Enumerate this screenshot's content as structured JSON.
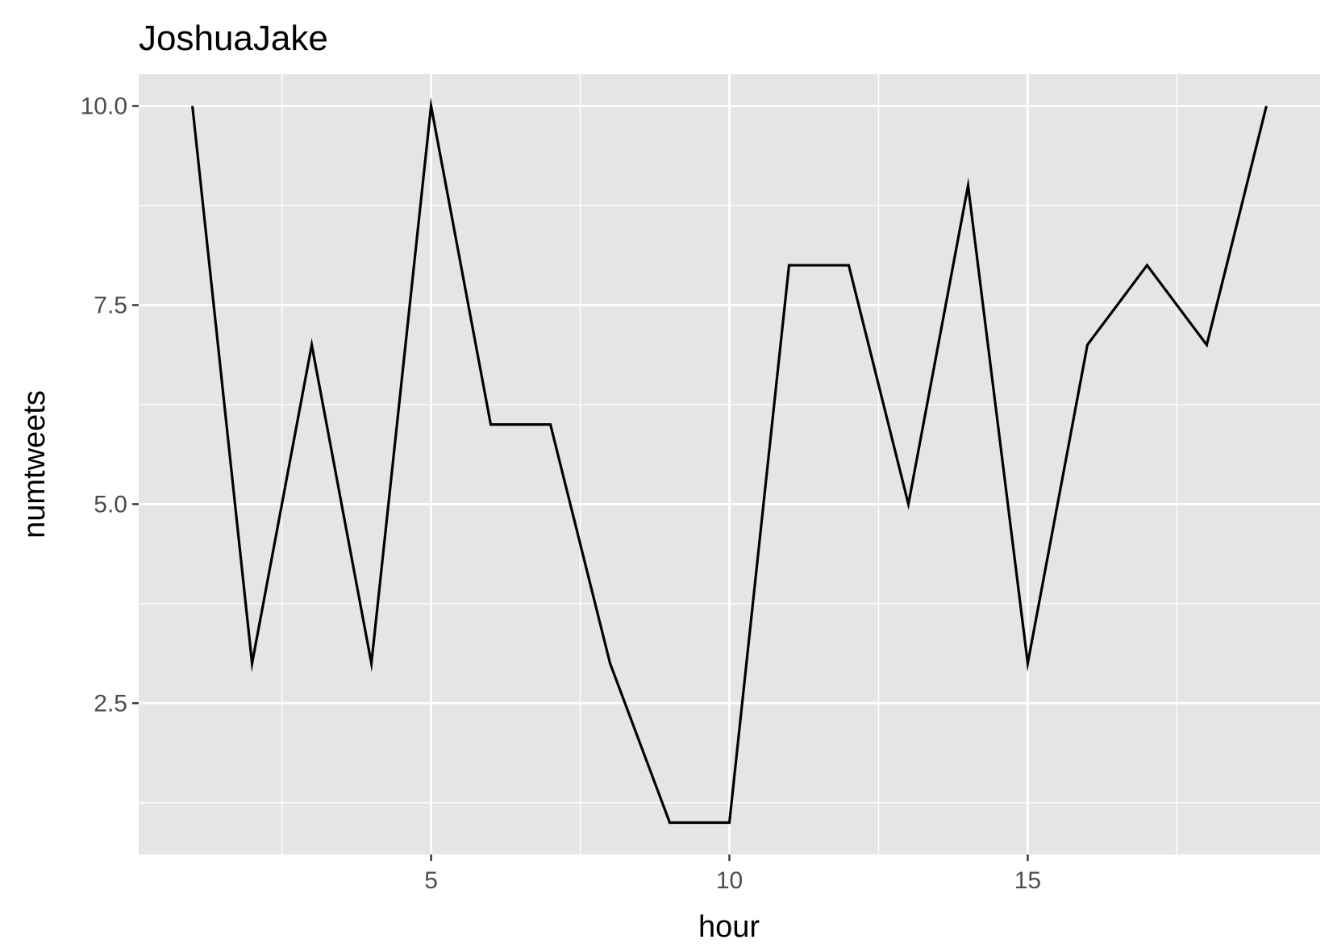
{
  "chart_data": {
    "type": "line",
    "title": "JoshuaJake",
    "xlabel": "hour",
    "ylabel": "numtweets",
    "x": [
      1,
      2,
      3,
      4,
      5,
      6,
      7,
      8,
      9,
      10,
      11,
      12,
      13,
      14,
      15,
      16,
      17,
      18,
      19
    ],
    "series": [
      {
        "values": [
          10,
          3,
          7,
          3,
          10,
          6,
          6,
          3,
          1,
          1,
          8,
          8,
          5,
          9,
          3,
          7,
          8,
          7,
          10
        ]
      }
    ],
    "xlim": [
      0.1,
      19.9
    ],
    "ylim": [
      0.6,
      10.4
    ],
    "x_major_ticks": [
      5,
      10,
      15
    ],
    "x_minor_ticks": [
      2.5,
      7.5,
      12.5,
      17.5
    ],
    "y_major_ticks": [
      2.5,
      5.0,
      7.5,
      10.0
    ],
    "y_minor_ticks": [
      1.25,
      3.75,
      6.25,
      8.75
    ],
    "x_tick_labels": [
      "5",
      "10",
      "15"
    ],
    "y_tick_labels": [
      "2.5",
      "5.0",
      "7.5",
      "10.0"
    ],
    "grid": true,
    "colors": {
      "panel_background": "#e5e5e5",
      "grid_line": "#ffffff",
      "series_line": "#000000",
      "tick_mark": "#333333"
    }
  }
}
